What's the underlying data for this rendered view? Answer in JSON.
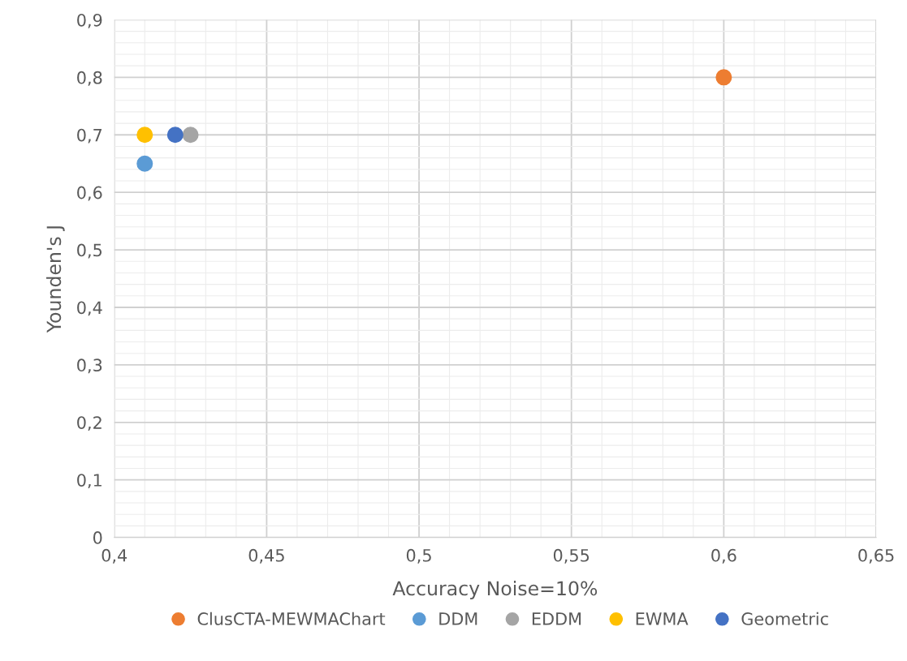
{
  "chart_data": {
    "type": "scatter",
    "xlabel": "Accuracy Noise=10%",
    "ylabel": "Younden's J",
    "series": [
      {
        "name": "ClusCTA-MEWMAChart",
        "color": "#ed7d31",
        "x": [
          0.6
        ],
        "values": [
          0.8
        ]
      },
      {
        "name": "DDM",
        "color": "#5b9bd5",
        "x": [
          0.41
        ],
        "values": [
          0.65
        ]
      },
      {
        "name": "EDDM",
        "color": "#a5a5a5",
        "x": [
          0.425
        ],
        "values": [
          0.7
        ]
      },
      {
        "name": "EWMA",
        "color": "#ffc000",
        "x": [
          0.41
        ],
        "values": [
          0.7
        ]
      },
      {
        "name": "Geometric",
        "color": "#4472c4",
        "x": [
          0.42
        ],
        "values": [
          0.7
        ]
      }
    ],
    "xlim": [
      0.4,
      0.65
    ],
    "xticks": [
      {
        "value": 0.4,
        "label": "0,4"
      },
      {
        "value": 0.45,
        "label": "0,45"
      },
      {
        "value": 0.5,
        "label": "0,5"
      },
      {
        "value": 0.55,
        "label": "0,55"
      },
      {
        "value": 0.6,
        "label": "0,6"
      },
      {
        "value": 0.65,
        "label": "0,65"
      }
    ],
    "ylim": [
      0,
      0.9
    ],
    "yticks": [
      0,
      {
        "value": 0.1,
        "label": "0,1"
      },
      {
        "value": 0.2,
        "label": "0,2"
      },
      {
        "value": 0.3,
        "label": "0,3"
      },
      {
        "value": 0.4,
        "label": "0,4"
      },
      {
        "value": 0.5,
        "label": "0,5"
      },
      {
        "value": 0.6,
        "label": "0,6"
      },
      {
        "value": 0.7,
        "label": "0,7"
      },
      {
        "value": 0.8,
        "label": "0,8"
      },
      {
        "value": 0.9,
        "label": "0,9"
      }
    ],
    "grid": true,
    "legend": "bottom",
    "marker": "circle"
  }
}
